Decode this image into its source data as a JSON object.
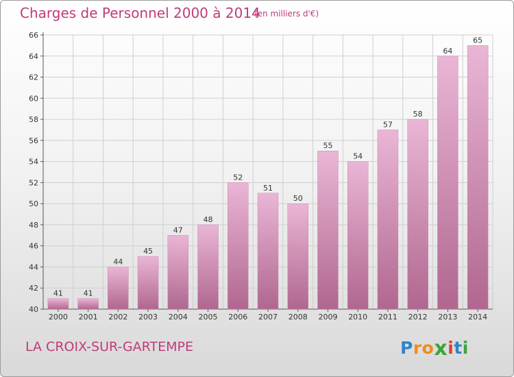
{
  "header": {
    "title": "Charges de Personnel 2000 à 2014",
    "unit_note": "(en milliers d'€)"
  },
  "footer": {
    "commune": "LA CROIX-SUR-GARTEMPE",
    "logo_text": "Proxiti",
    "logo_letters": [
      {
        "ch": "P",
        "color": "#2e86c8"
      },
      {
        "ch": "r",
        "color": "#f08c1c"
      },
      {
        "ch": "o",
        "color": "#f08c1c"
      },
      {
        "ch": "x",
        "color": "#3aa53a"
      },
      {
        "ch": "i",
        "color": "#e23b2f"
      },
      {
        "ch": "t",
        "color": "#2e86c8"
      },
      {
        "ch": "i",
        "color": "#3aa53a"
      }
    ]
  },
  "colors": {
    "title": "#c03a7a",
    "bar_top": "#eab6d6",
    "bar_bottom": "#b0678f",
    "grid": "#cfcfcf"
  },
  "chart_data": {
    "type": "bar",
    "title": "Charges de Personnel 2000 à 2014",
    "subtitle": "(en milliers d'€)",
    "xlabel": "",
    "ylabel": "",
    "categories": [
      "2000",
      "2001",
      "2002",
      "2003",
      "2004",
      "2005",
      "2006",
      "2007",
      "2008",
      "2009",
      "2010",
      "2011",
      "2012",
      "2013",
      "2014"
    ],
    "values": [
      41,
      41,
      44,
      45,
      47,
      48,
      52,
      51,
      50,
      55,
      54,
      57,
      58,
      64,
      65
    ],
    "ylim": [
      40,
      66
    ],
    "yticks": [
      40,
      42,
      44,
      46,
      48,
      50,
      52,
      54,
      56,
      58,
      60,
      62,
      64,
      66
    ],
    "grid": true,
    "data_labels": true
  }
}
